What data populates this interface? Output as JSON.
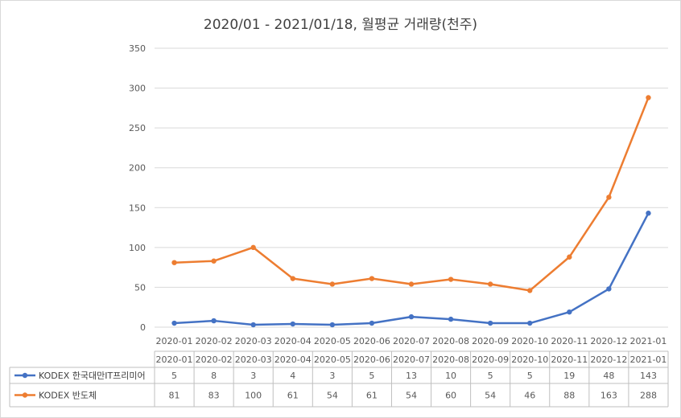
{
  "chart_data": {
    "type": "line",
    "title": "2020/01 - 2021/01/18, 월평균 거래량(천주)",
    "categories": [
      "2020-01",
      "2020-02",
      "2020-03",
      "2020-04",
      "2020-05",
      "2020-06",
      "2020-07",
      "2020-08",
      "2020-09",
      "2020-10",
      "2020-11",
      "2020-12",
      "2021-01"
    ],
    "table_categories": [
      "2020-01",
      "2020-02",
      "2020-03",
      "2020-04",
      "2020-05",
      "2020-06",
      "2020-07",
      "2020-08",
      "2020-09",
      "2020-10",
      "2020-11",
      "2020-12",
      "2021-01"
    ],
    "series": [
      {
        "name": "KODEX 한국대만IT프리미어",
        "color": "#4472c4",
        "values": [
          5,
          8,
          3,
          4,
          3,
          5,
          13,
          10,
          5,
          5,
          19,
          48,
          143
        ]
      },
      {
        "name": "KODEX 반도체",
        "color": "#ed7d31",
        "values": [
          81,
          83,
          100,
          61,
          54,
          61,
          54,
          60,
          54,
          46,
          88,
          163,
          288
        ]
      }
    ],
    "ylim": [
      0,
      350
    ],
    "yticks": [
      0,
      50,
      100,
      150,
      200,
      250,
      300,
      350
    ],
    "grid": true,
    "legend": "data-table"
  }
}
